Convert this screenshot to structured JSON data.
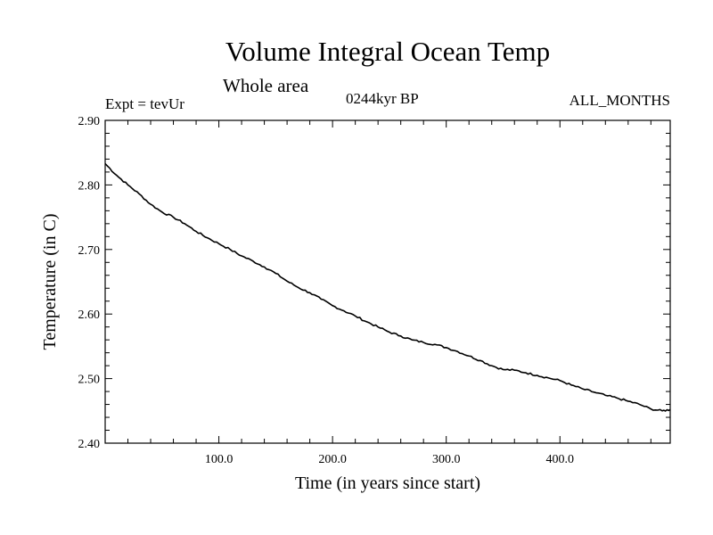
{
  "chart_data": {
    "type": "line",
    "title": "Volume Integral Ocean Temp",
    "subtitle": "Whole area",
    "annotations": {
      "left": "Expt = tevUr",
      "center": "0244kyr BP",
      "right": "ALL_MONTHS"
    },
    "xlabel": "Time (in years since start)",
    "ylabel": "Temperature (in C)",
    "xlim": [
      0,
      497
    ],
    "ylim": [
      2.4,
      2.9
    ],
    "xticks": [
      100,
      200,
      300,
      400
    ],
    "xtick_labels": [
      "100.0",
      "200.0",
      "300.0",
      "400.0"
    ],
    "yticks": [
      2.4,
      2.5,
      2.6,
      2.7,
      2.8,
      2.9
    ],
    "ytick_labels": [
      "2.40",
      "2.50",
      "2.60",
      "2.70",
      "2.80",
      "2.90"
    ],
    "grid": false,
    "series": [
      {
        "x": [
          0,
          10,
          20,
          30,
          40,
          50,
          60,
          70,
          80,
          90,
          100,
          110,
          120,
          130,
          140,
          150,
          160,
          170,
          180,
          190,
          200,
          210,
          220,
          230,
          240,
          250,
          260,
          270,
          280,
          290,
          300,
          310,
          320,
          330,
          340,
          350,
          360,
          370,
          380,
          390,
          400,
          410,
          420,
          430,
          440,
          450,
          460,
          470,
          480,
          490,
          497
        ],
        "y": [
          2.833,
          2.815,
          2.8,
          2.786,
          2.77,
          2.758,
          2.75,
          2.74,
          2.728,
          2.718,
          2.709,
          2.7,
          2.69,
          2.682,
          2.673,
          2.663,
          2.651,
          2.641,
          2.633,
          2.623,
          2.613,
          2.605,
          2.597,
          2.588,
          2.58,
          2.572,
          2.566,
          2.56,
          2.556,
          2.553,
          2.548,
          2.542,
          2.535,
          2.528,
          2.52,
          2.514,
          2.513,
          2.509,
          2.505,
          2.501,
          2.497,
          2.49,
          2.484,
          2.479,
          2.474,
          2.47,
          2.465,
          2.46,
          2.453,
          2.45,
          2.452
        ]
      }
    ]
  }
}
